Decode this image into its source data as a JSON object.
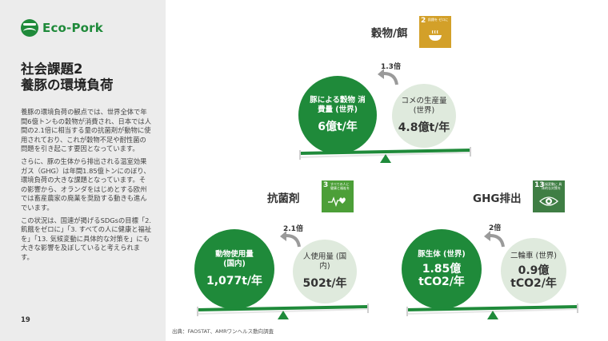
{
  "logo": {
    "text": "Eco-Pork"
  },
  "heading": {
    "line1": "社会課題2",
    "line2": "養豚の環境負荷"
  },
  "body": {
    "p1": "養豚の環境負荷の観点では、世界全体で年間6億トンもの穀物が消費され、日本では人間の2.1倍に相当する量の抗菌剤が動物に使用されており、これが穀物不足や耐性菌の問題を引き起こす要因となっています。",
    "p2": "さらに、豚の生体から排出される温室効果ガス（GHG）は年間1.85億トンにのぼり、環境負荷の大きな課題となっています。その影響から、オランダをはじめとする欧州では畜産農家の廃業を奨励する動きも進んでいます。",
    "p3": "この状況は、国連が掲げるSDGsの目標「2. 飢餓をゼロに」「3. すべての人に健康と福祉を」「13. 気候変動に具体的な対策を」にも大きな影響を及ぼしていると考えられます。"
  },
  "page_number": "19",
  "grain": {
    "title": "穀物/餌",
    "sdg": {
      "number": "2",
      "text": "飢餓を ゼロに",
      "color": "#d3a029",
      "icon": "bowl-icon"
    },
    "ratio": "1.3倍",
    "big": {
      "label": "豚による穀物 消費量 (世界)",
      "value": "6億t/年"
    },
    "small": {
      "label": "コメの生産量 (世界)",
      "value": "4.8億t/年"
    }
  },
  "antibiotic": {
    "title": "抗菌剤",
    "sdg": {
      "number": "3",
      "text": "すべての人に 健康と福祉を",
      "color": "#4c9f38",
      "icon": "heartbeat-icon"
    },
    "ratio": "2.1倍",
    "big": {
      "label": "動物使用量 (国内)",
      "value": "1,077t/年"
    },
    "small": {
      "label": "人使用量 (国内)",
      "value": "502t/年"
    }
  },
  "ghg": {
    "title": "GHG排出",
    "sdg": {
      "number": "13",
      "text": "気候変動に 具体的な対策を",
      "color": "#3f7e44",
      "icon": "eye-globe-icon"
    },
    "ratio": "2倍",
    "big": {
      "label": "豚生体 (世界)",
      "value": "1.85億 tCO2/年"
    },
    "small": {
      "label": "二輪車 (世界)",
      "value": "0.9億 tCO2/年"
    }
  },
  "source": "出典：FAOSTAT、AMRワンヘルス動向調査",
  "colors": {
    "accent": "#1f8a3a",
    "light_circle": "#dfeadd",
    "sidebar": "#ececec"
  }
}
